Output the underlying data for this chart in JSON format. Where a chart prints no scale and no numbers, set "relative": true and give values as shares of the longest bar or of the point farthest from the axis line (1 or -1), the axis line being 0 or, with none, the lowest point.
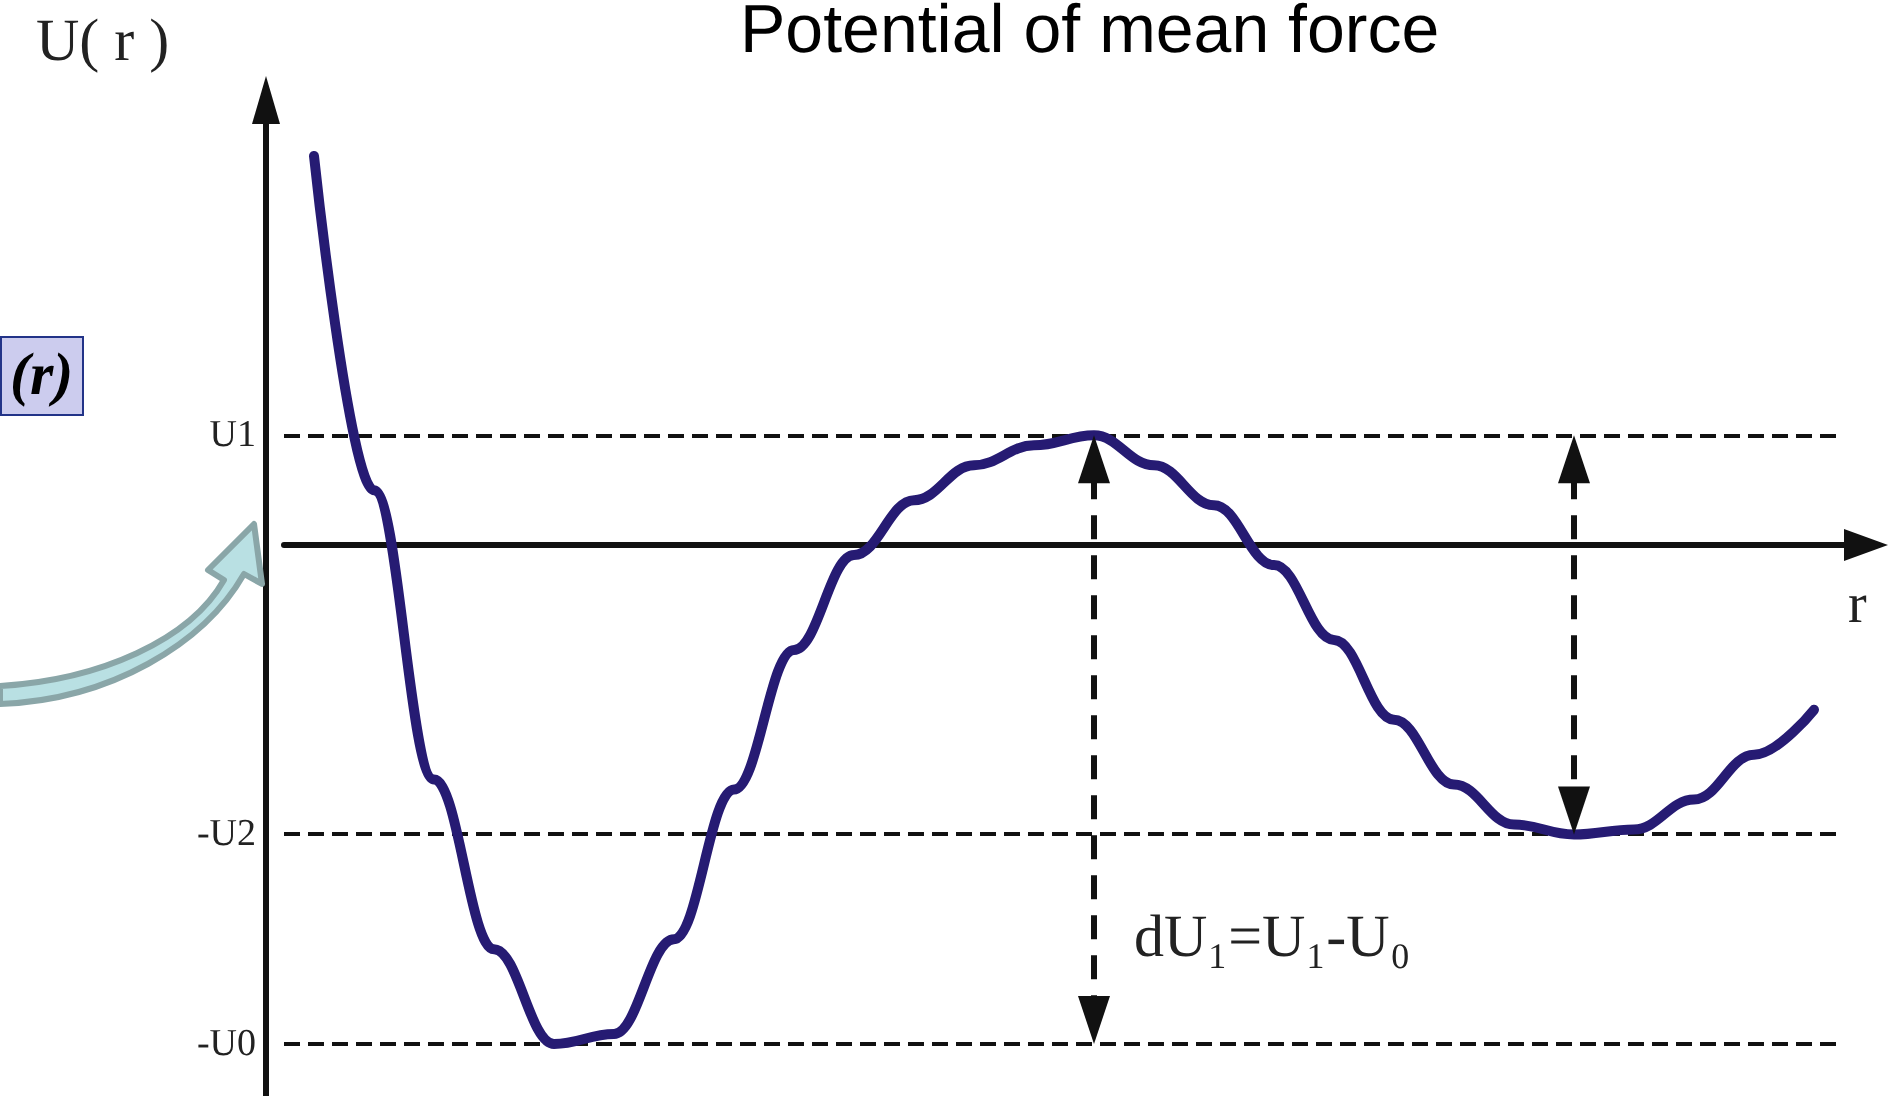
{
  "chart_data": {
    "type": "line",
    "title": "Potential of mean force",
    "xlabel": "r",
    "ylabel": "U( r )",
    "relative": true,
    "categories": [
      null,
      null,
      null,
      null,
      null,
      null,
      null,
      null,
      null,
      null,
      null,
      null,
      null,
      null,
      null,
      null,
      null,
      null,
      null,
      null,
      null,
      null,
      null,
      null,
      null,
      null
    ],
    "series": [
      {
        "color": "#261b73",
        "values": [
          0.78,
          0.11,
          -0.47,
          -0.81,
          -1.0,
          -0.98,
          -0.79,
          -0.49,
          -0.21,
          -0.02,
          0.09,
          0.16,
          0.2,
          0.22,
          0.16,
          0.08,
          -0.04,
          -0.19,
          -0.35,
          -0.48,
          -0.56,
          -0.58,
          -0.57,
          -0.51,
          -0.42,
          -0.33
        ]
      }
    ],
    "ref_lines": [
      {
        "axis": "y",
        "value": 0.22,
        "label": "U1",
        "line_style": "dashed",
        "color": "#111111"
      },
      {
        "axis": "y",
        "value": -0.58,
        "label": "-U2",
        "line_style": "dashed",
        "color": "#111111"
      },
      {
        "axis": "y",
        "value": -1.0,
        "label": "-U0",
        "line_style": "dashed",
        "color": "#111111"
      }
    ],
    "annotations": [
      "dU₁=U₁-U₀",
      "(r)"
    ],
    "marker": "none",
    "line_style": "solid",
    "grid": false
  }
}
